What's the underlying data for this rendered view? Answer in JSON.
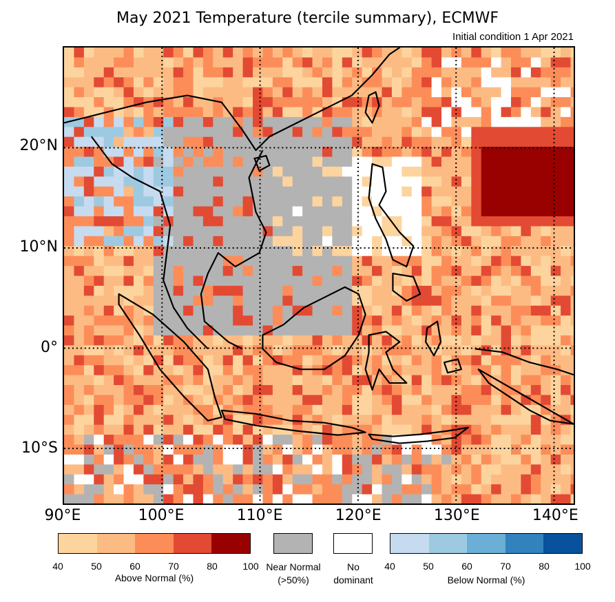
{
  "title": "May 2021 Temperature (tercile summary), ECMWF",
  "subtitle": "Initial condition 1 Apr 2021",
  "map": {
    "lon_range": [
      90,
      142
    ],
    "lat_range": [
      -15.5,
      30
    ],
    "lat_labels": [
      {
        "value": 20,
        "text": "20°N"
      },
      {
        "value": 10,
        "text": "10°N"
      },
      {
        "value": 0,
        "text": "0°"
      },
      {
        "value": -10,
        "text": "10°S"
      }
    ],
    "lon_labels": [
      {
        "value": 90,
        "text": "90°E"
      },
      {
        "value": 100,
        "text": "100°E"
      },
      {
        "value": 110,
        "text": "110°E"
      },
      {
        "value": 120,
        "text": "120°E"
      },
      {
        "value": 130,
        "text": "130°E"
      },
      {
        "value": 140,
        "text": "140°E"
      }
    ]
  },
  "legend": {
    "above": {
      "caption": "Above Normal (%)",
      "ticks": [
        "40",
        "50",
        "60",
        "70",
        "80",
        "100"
      ],
      "colors": [
        "#fdd49e",
        "#fdbb84",
        "#fc8d59",
        "#e34a33",
        "#990000"
      ]
    },
    "near": {
      "caption": "Near Normal\n(>50%)",
      "color": "#b3b3b3"
    },
    "none": {
      "caption": "No\ndominant",
      "color": "#ffffff"
    },
    "below": {
      "caption": "Below Normal (%)",
      "ticks": [
        "40",
        "50",
        "60",
        "70",
        "80",
        "100"
      ],
      "colors": [
        "#c6dbef",
        "#9ecae1",
        "#6baed6",
        "#3182bd",
        "#08519c"
      ]
    }
  }
}
